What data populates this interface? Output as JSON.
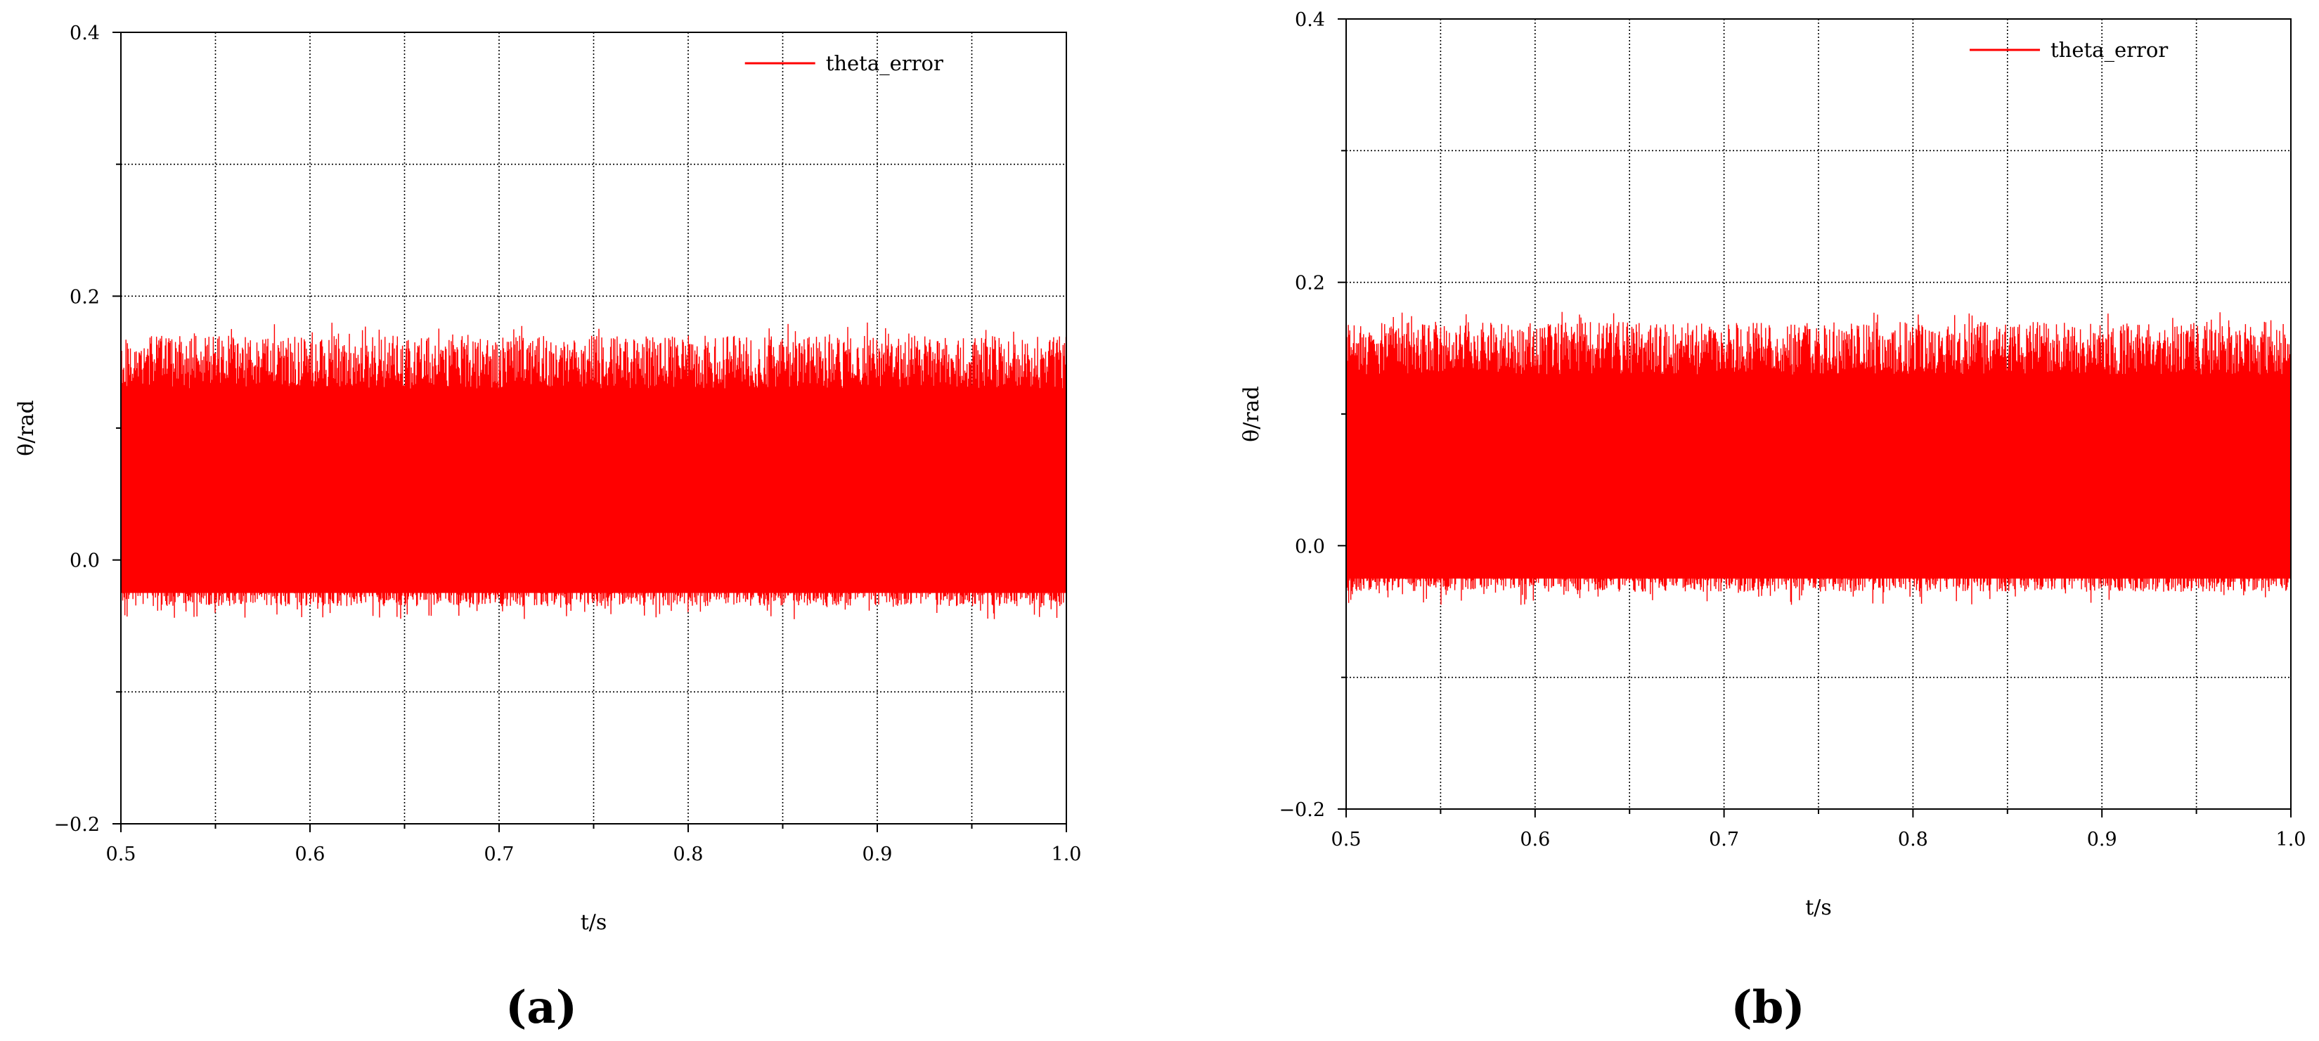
{
  "chart_data": [
    {
      "type": "line",
      "panel_label": "(a)",
      "xlabel": "t/s",
      "ylabel": "θ/rad",
      "xlim": [
        0.5,
        1.0
      ],
      "ylim": [
        -0.2,
        0.4
      ],
      "xticks": [
        0.5,
        0.6,
        0.7,
        0.8,
        0.9,
        1.0
      ],
      "xtick_labels": [
        "0.5",
        "0.6",
        "0.7",
        "0.8",
        "0.9",
        "1.0"
      ],
      "yticks": [
        -0.2,
        0.0,
        0.2,
        0.4
      ],
      "ytick_labels": [
        "−0.2",
        "0.0",
        "0.2",
        "0.4"
      ],
      "grid": true,
      "legend_position": "top-right",
      "series": [
        {
          "name": "theta_error",
          "color": "#ff0000",
          "description_values": {
            "mean": 0.06,
            "typical_upper": 0.15,
            "typical_lower": -0.03,
            "peak_max": 0.18,
            "peak_min": -0.045
          },
          "x_range": [
            0.5,
            1.0
          ]
        }
      ]
    },
    {
      "type": "line",
      "panel_label": "(b)",
      "xlabel": "t/s",
      "ylabel": "θ/rad",
      "xlim": [
        0.5,
        1.0
      ],
      "ylim": [
        -0.2,
        0.4
      ],
      "xticks": [
        0.5,
        0.6,
        0.7,
        0.8,
        0.9,
        1.0
      ],
      "xtick_labels": [
        "0.5",
        "0.6",
        "0.7",
        "0.8",
        "0.9",
        "1.0"
      ],
      "yticks": [
        -0.2,
        0.0,
        0.2,
        0.4
      ],
      "ytick_labels": [
        "−0.2",
        "0.0",
        "0.2",
        "0.4"
      ],
      "grid": true,
      "legend_position": "top-right",
      "series": [
        {
          "name": "theta_error",
          "color": "#ff0000",
          "description_values": {
            "mean": 0.06,
            "typical_upper": 0.15,
            "typical_lower": -0.03,
            "peak_max": 0.178,
            "peak_min": -0.045
          },
          "x_range": [
            0.5,
            1.0
          ]
        }
      ]
    }
  ]
}
